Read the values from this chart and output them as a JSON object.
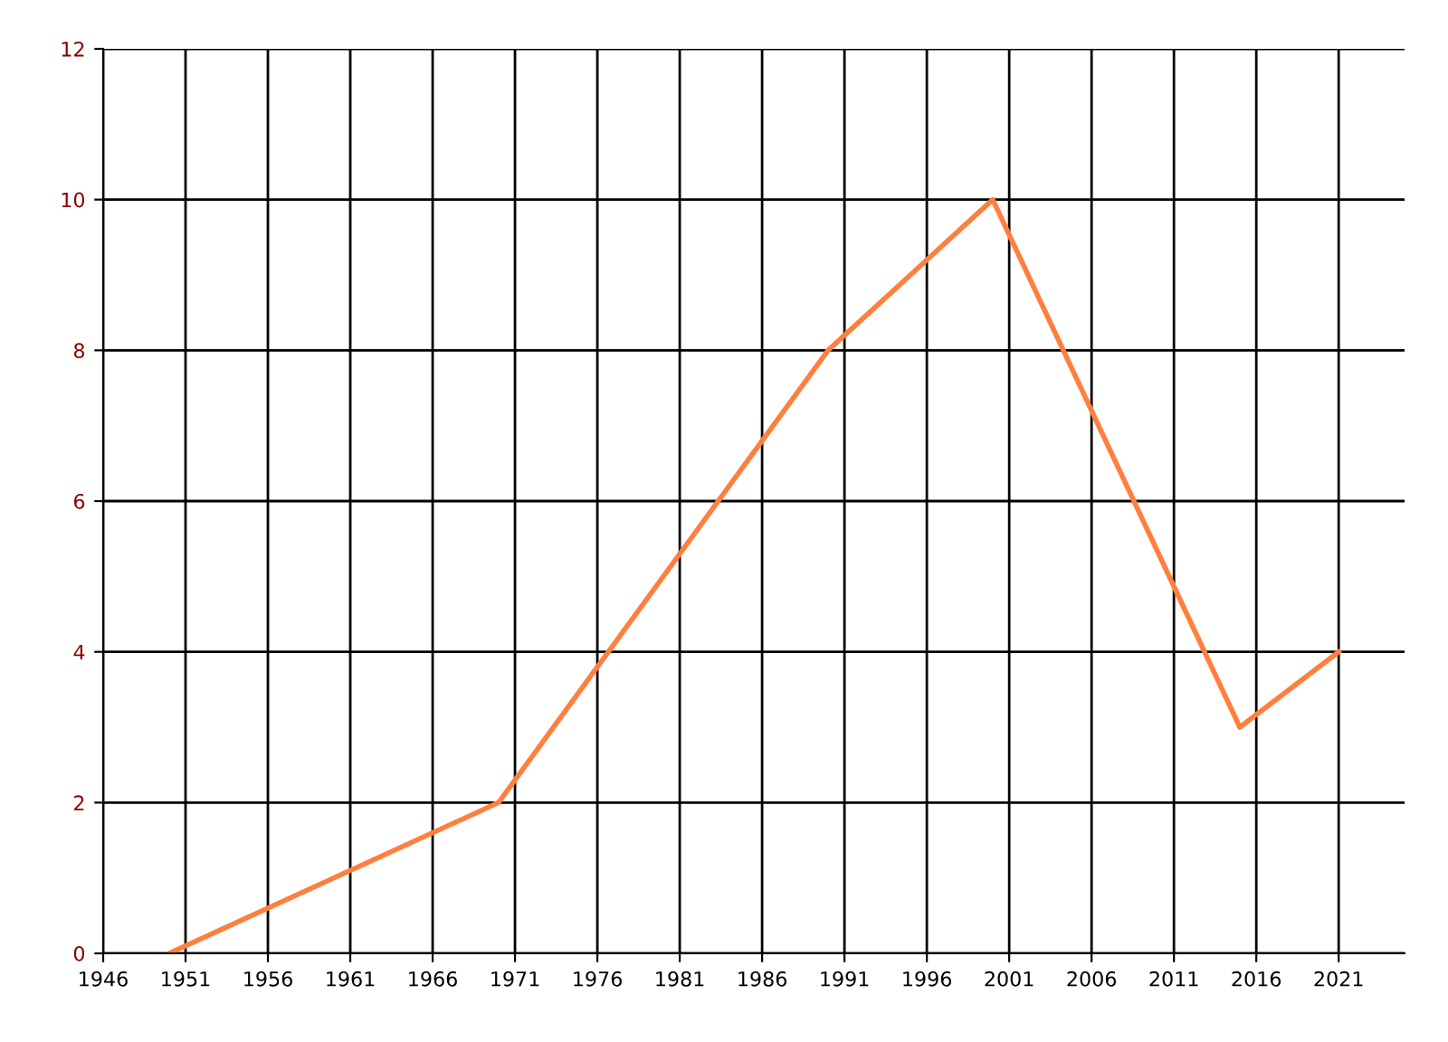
{
  "chart_data": {
    "type": "line",
    "x": [
      1950,
      1970,
      1990,
      2000,
      2015,
      2021
    ],
    "series": [
      {
        "color": "#ff7f3f",
        "values": [
          0,
          2,
          8,
          10,
          3,
          4
        ]
      }
    ],
    "xlim": [
      1946,
      2025
    ],
    "xticks": [
      1946,
      1951,
      1956,
      1961,
      1966,
      1971,
      1976,
      1981,
      1986,
      1991,
      1996,
      2001,
      2006,
      2011,
      2016,
      2021
    ],
    "ylim": [
      0,
      12
    ],
    "yticks": [
      0,
      2,
      4,
      6,
      8,
      10,
      12
    ],
    "grid": true,
    "legend": false,
    "marker": "none",
    "line_style": "solid"
  }
}
